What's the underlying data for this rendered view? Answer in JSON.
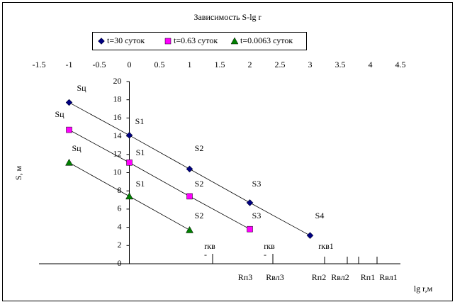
{
  "chart_data": {
    "type": "line",
    "title": "Зависимость S-lg r",
    "xlabel": "lg r,м",
    "ylabel": "S, м",
    "xlim": [
      -1.5,
      4.5
    ],
    "xticks": [
      -1.5,
      -1,
      -0.5,
      0,
      0.5,
      1,
      1.5,
      2,
      2.5,
      3,
      3.5,
      4,
      4.5
    ],
    "ylim": [
      0,
      20
    ],
    "yticks": [
      0,
      2,
      4,
      6,
      8,
      10,
      12,
      14,
      16,
      18,
      20
    ],
    "legend": "top",
    "series": [
      {
        "name": "t=30 суток",
        "color": "#000080",
        "marker": "diamond",
        "x": [
          -1,
          0,
          1,
          2,
          3
        ],
        "values": [
          17.7,
          14.1,
          10.4,
          6.7,
          3.1
        ]
      },
      {
        "name": "t=0.63 суток",
        "color": "#ff00ff",
        "marker": "square",
        "x": [
          -1,
          0,
          1,
          2
        ],
        "values": [
          14.7,
          11.1,
          7.4,
          3.8
        ]
      },
      {
        "name": "t=0.0063 суток",
        "color": "#008000",
        "marker": "triangle",
        "x": [
          -1,
          0,
          1
        ],
        "values": [
          11.1,
          7.4,
          3.7
        ]
      }
    ],
    "annotations": [
      "Sц",
      "Sц",
      "Sц",
      "S1",
      "S1",
      "S1",
      "S2",
      "S2",
      "S2",
      "S3",
      "S3",
      "S4",
      "rкв",
      "-",
      "rкв",
      "-",
      "rкв1",
      "Rп3",
      "Rвл3",
      "Rп2",
      "Rвл2",
      "Rп1",
      "Rвл1"
    ]
  }
}
